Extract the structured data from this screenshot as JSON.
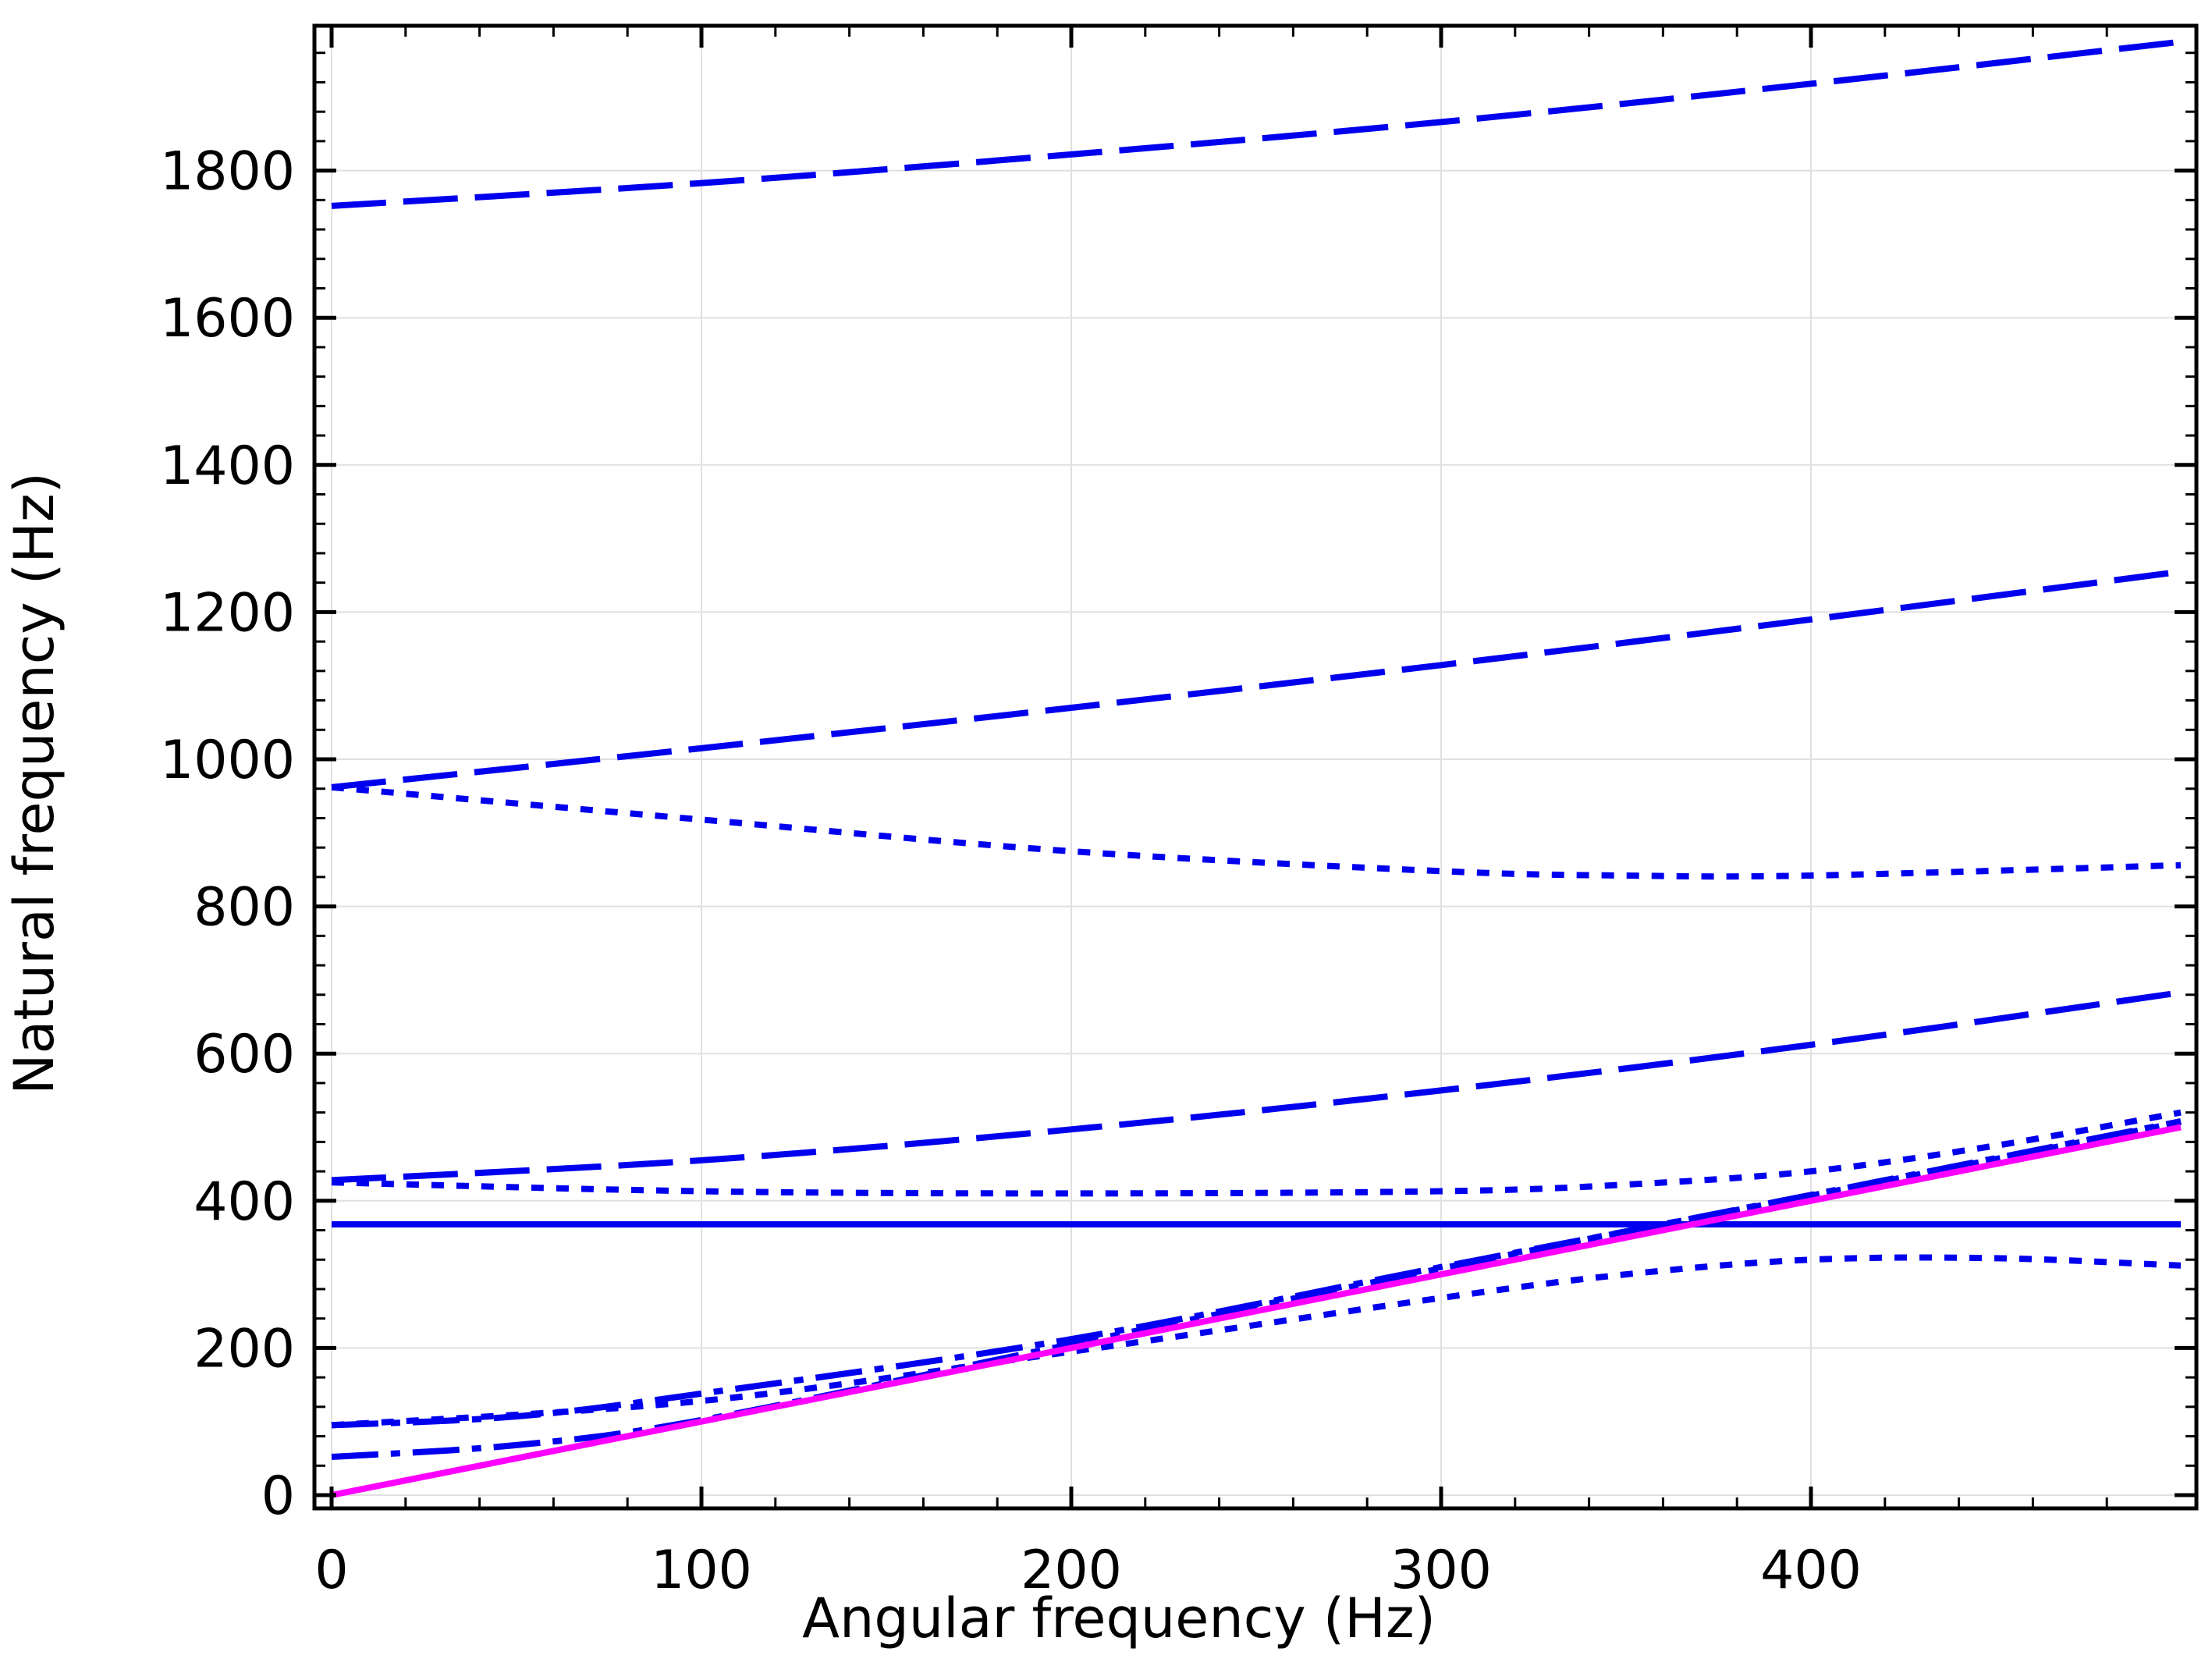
{
  "chart_data": {
    "type": "line",
    "xlabel": "Angular frequency (Hz)",
    "ylabel": "Natural frequency (Hz)",
    "xlim": [
      -5,
      505
    ],
    "ylim": [
      -20,
      2000
    ],
    "xticks": [
      0,
      100,
      200,
      300,
      400
    ],
    "xtick_labels": [
      "0",
      "100",
      "200",
      "300",
      "400"
    ],
    "yticks": [
      0,
      200,
      400,
      600,
      800,
      1000,
      1200,
      1400,
      1600,
      1800
    ],
    "ytick_labels": [
      "0",
      "200",
      "400",
      "600",
      "800",
      "1000",
      "1200",
      "1400",
      "1600",
      "1800"
    ],
    "grid": true,
    "colors": {
      "modes": "#0000ee",
      "reference": "#ff00ff",
      "grid": "#e0e0e0"
    },
    "series": [
      {
        "style": "long-dash",
        "color": "#0000ee",
        "x": [
          0,
          100,
          200,
          300,
          400,
          500
        ],
        "y": [
          1752,
          1783,
          1822,
          1866,
          1918,
          1975
        ]
      },
      {
        "style": "long-dash",
        "color": "#0000ee",
        "x": [
          0,
          100,
          200,
          300,
          400,
          500
        ],
        "y": [
          962,
          1015,
          1070,
          1128,
          1190,
          1255
        ]
      },
      {
        "style": "dotted",
        "color": "#0000ee",
        "x": [
          0,
          100,
          200,
          300,
          350,
          400,
          500
        ],
        "y": [
          962,
          918,
          875,
          848,
          842,
          842,
          856
        ]
      },
      {
        "style": "long-dash",
        "color": "#0000ee",
        "x": [
          0,
          100,
          200,
          300,
          400,
          500
        ],
        "y": [
          428,
          455,
          497,
          550,
          612,
          683
        ]
      },
      {
        "style": "dotted",
        "color": "#0000ee",
        "x": [
          0,
          100,
          200,
          300,
          350,
          400,
          450,
          500
        ],
        "y": [
          425,
          413,
          410,
          413,
          422,
          440,
          475,
          520
        ]
      },
      {
        "style": "solid",
        "color": "#0000ee",
        "x": [
          0,
          100,
          200,
          300,
          400,
          500
        ],
        "y": [
          368,
          368,
          368,
          368,
          368,
          368
        ]
      },
      {
        "style": "dotted",
        "color": "#0000ee",
        "x": [
          0,
          100,
          200,
          300,
          350,
          400,
          450,
          500
        ],
        "y": [
          95,
          128,
          195,
          268,
          300,
          320,
          322,
          312
        ]
      },
      {
        "style": "dash-dot",
        "color": "#0000ee",
        "x": [
          0,
          50,
          100,
          200,
          300,
          400,
          500
        ],
        "y": [
          95,
          107,
          138,
          212,
          310,
          407,
          507
        ]
      },
      {
        "style": "dash-dot",
        "color": "#0000ee",
        "x": [
          0,
          50,
          100,
          200,
          300,
          400,
          500
        ],
        "y": [
          52,
          68,
          102,
          205,
          308,
          408,
          508
        ]
      },
      {
        "style": "solid",
        "color": "#ff00ff",
        "x": [
          0,
          500
        ],
        "y": [
          0,
          500
        ]
      }
    ]
  }
}
